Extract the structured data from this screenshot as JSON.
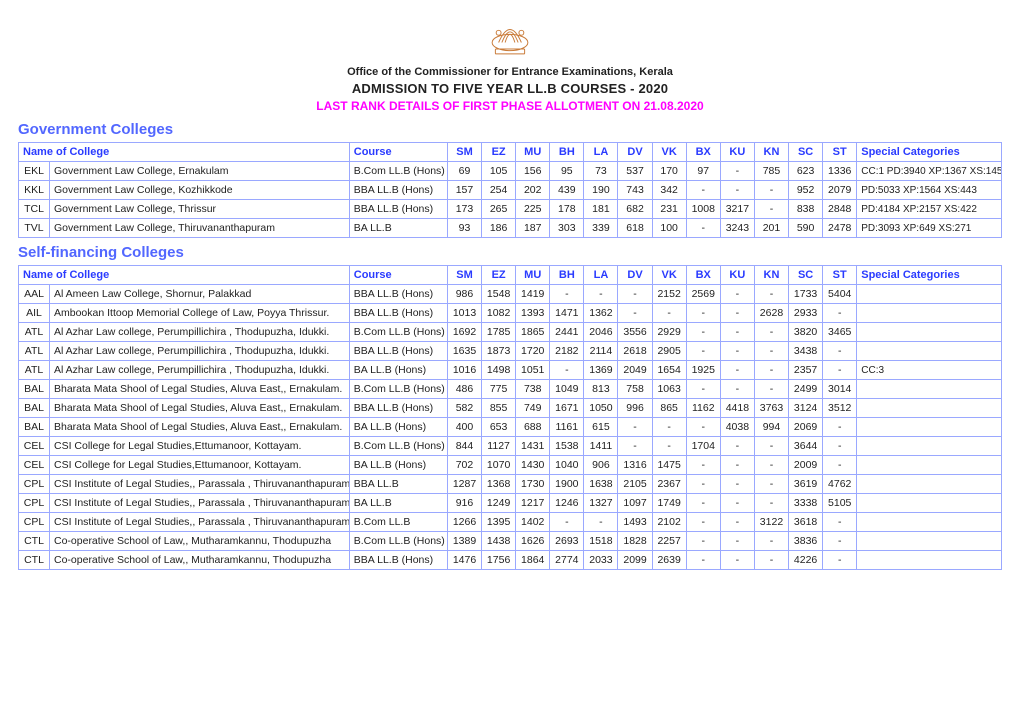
{
  "header": {
    "office": "Office of the Commissioner for Entrance Examinations, Kerala",
    "title": "ADMISSION TO FIVE YEAR LL.B COURSES - 2020",
    "subtitle": "LAST RANK DETAILS  OF FIRST PHASE ALLOTMENT ON 21.08.2020",
    "emblem_stroke": "#c97b39"
  },
  "columns": {
    "name": "Name of College",
    "course": "Course",
    "ranks": [
      "SM",
      "EZ",
      "MU",
      "BH",
      "LA",
      "DV",
      "VK",
      "BX",
      "KU",
      "KN",
      "SC",
      "ST"
    ],
    "special": "Special Categories"
  },
  "sections": [
    {
      "heading": "Government Colleges",
      "rows": [
        {
          "code": "EKL",
          "name": "Government Law College, Ernakulam",
          "course": "B.Com LL.B (Hons)",
          "ranks": [
            "69",
            "105",
            "156",
            "95",
            "73",
            "537",
            "170",
            "97",
            "-",
            "785",
            "623",
            "1336"
          ],
          "special": "CC:1 PD:3940 XP:1367 XS:145"
        },
        {
          "code": "KKL",
          "name": "Government Law College, Kozhikkode",
          "course": "BBA LL.B (Hons)",
          "ranks": [
            "157",
            "254",
            "202",
            "439",
            "190",
            "743",
            "342",
            "-",
            "-",
            "-",
            "952",
            "2079"
          ],
          "special": "PD:5033 XP:1564 XS:443"
        },
        {
          "code": "TCL",
          "name": "Government Law College, Thrissur",
          "course": "BBA LL.B (Hons)",
          "ranks": [
            "173",
            "265",
            "225",
            "178",
            "181",
            "682",
            "231",
            "1008",
            "3217",
            "-",
            "838",
            "2848"
          ],
          "special": "PD:4184 XP:2157 XS:422"
        },
        {
          "code": "TVL",
          "name": "Government Law College, Thiruvananthapuram",
          "course": "BA LL.B",
          "ranks": [
            "93",
            "186",
            "187",
            "303",
            "339",
            "618",
            "100",
            "-",
            "3243",
            "201",
            "590",
            "2478"
          ],
          "special": "PD:3093 XP:649 XS:271"
        }
      ]
    },
    {
      "heading": "Self-financing Colleges",
      "rows": [
        {
          "code": "AAL",
          "name": "Al Ameen Law College, Shornur, Palakkad",
          "course": "BBA LL.B (Hons)",
          "ranks": [
            "986",
            "1548",
            "1419",
            "-",
            "-",
            "-",
            "2152",
            "2569",
            "-",
            "-",
            "1733",
            "5404"
          ],
          "special": ""
        },
        {
          "code": "AIL",
          "name": "Ambookan Ittoop Memorial College of Law, Poyya Thrissur.",
          "course": "BBA LL.B (Hons)",
          "ranks": [
            "1013",
            "1082",
            "1393",
            "1471",
            "1362",
            "-",
            "-",
            "-",
            "-",
            "2628",
            "2933",
            "-"
          ],
          "special": ""
        },
        {
          "code": "ATL",
          "name": "Al Azhar Law college, Perumpillichira , Thodupuzha, Idukki.",
          "course": "B.Com LL.B (Hons)",
          "ranks": [
            "1692",
            "1785",
            "1865",
            "2441",
            "2046",
            "3556",
            "2929",
            "-",
            "-",
            "-",
            "3820",
            "3465"
          ],
          "special": ""
        },
        {
          "code": "ATL",
          "name": "Al Azhar Law college, Perumpillichira , Thodupuzha, Idukki.",
          "course": "BBA LL.B (Hons)",
          "ranks": [
            "1635",
            "1873",
            "1720",
            "2182",
            "2114",
            "2618",
            "2905",
            "-",
            "-",
            "-",
            "3438",
            "-"
          ],
          "special": ""
        },
        {
          "code": "ATL",
          "name": "Al Azhar Law college, Perumpillichira , Thodupuzha, Idukki.",
          "course": "BA LL.B (Hons)",
          "ranks": [
            "1016",
            "1498",
            "1051",
            "-",
            "1369",
            "2049",
            "1654",
            "1925",
            "-",
            "-",
            "2357",
            "-"
          ],
          "special": "CC:3"
        },
        {
          "code": "BAL",
          "name": "Bharata Mata Shool of Legal Studies, Aluva East,, Ernakulam.",
          "course": "B.Com LL.B (Hons)",
          "ranks": [
            "486",
            "775",
            "738",
            "1049",
            "813",
            "758",
            "1063",
            "-",
            "-",
            "-",
            "2499",
            "3014"
          ],
          "special": ""
        },
        {
          "code": "BAL",
          "name": "Bharata Mata Shool of Legal Studies, Aluva East,, Ernakulam.",
          "course": "BBA LL.B (Hons)",
          "ranks": [
            "582",
            "855",
            "749",
            "1671",
            "1050",
            "996",
            "865",
            "1162",
            "4418",
            "3763",
            "3124",
            "3512"
          ],
          "special": ""
        },
        {
          "code": "BAL",
          "name": "Bharata Mata Shool of Legal Studies, Aluva East,, Ernakulam.",
          "course": "BA LL.B (Hons)",
          "ranks": [
            "400",
            "653",
            "688",
            "1161",
            "615",
            "-",
            "-",
            "-",
            "4038",
            "994",
            "2069",
            "-"
          ],
          "special": ""
        },
        {
          "code": "CEL",
          "name": "CSI College for Legal Studies,Ettumanoor, Kottayam.",
          "course": "B.Com LL.B (Hons)",
          "ranks": [
            "844",
            "1127",
            "1431",
            "1538",
            "1411",
            "-",
            "-",
            "1704",
            "-",
            "-",
            "3644",
            "-"
          ],
          "special": ""
        },
        {
          "code": "CEL",
          "name": "CSI College for Legal Studies,Ettumanoor, Kottayam.",
          "course": "BA LL.B (Hons)",
          "ranks": [
            "702",
            "1070",
            "1430",
            "1040",
            "906",
            "1316",
            "1475",
            "-",
            "-",
            "-",
            "2009",
            "-"
          ],
          "special": ""
        },
        {
          "code": "CPL",
          "name": "CSI Institute of Legal Studies,, Parassala , Thiruvananthapuram.",
          "course": "BBA LL.B",
          "ranks": [
            "1287",
            "1368",
            "1730",
            "1900",
            "1638",
            "2105",
            "2367",
            "-",
            "-",
            "-",
            "3619",
            "4762"
          ],
          "special": ""
        },
        {
          "code": "CPL",
          "name": "CSI Institute of Legal Studies,, Parassala , Thiruvananthapuram.",
          "course": "BA LL.B",
          "ranks": [
            "916",
            "1249",
            "1217",
            "1246",
            "1327",
            "1097",
            "1749",
            "-",
            "-",
            "-",
            "3338",
            "5105"
          ],
          "special": ""
        },
        {
          "code": "CPL",
          "name": "CSI Institute of Legal Studies,, Parassala , Thiruvananthapuram.",
          "course": "B.Com LL.B",
          "ranks": [
            "1266",
            "1395",
            "1402",
            "-",
            "-",
            "1493",
            "2102",
            "-",
            "-",
            "3122",
            "3618",
            "-"
          ],
          "special": ""
        },
        {
          "code": "CTL",
          "name": "Co-operative School of Law,, Mutharamkannu, Thodupuzha",
          "course": "B.Com LL.B (Hons)",
          "ranks": [
            "1389",
            "1438",
            "1626",
            "2693",
            "1518",
            "1828",
            "2257",
            "-",
            "-",
            "-",
            "3836",
            "-"
          ],
          "special": ""
        },
        {
          "code": "CTL",
          "name": "Co-operative School of Law,, Mutharamkannu, Thodupuzha",
          "course": "BBA LL.B (Hons)",
          "ranks": [
            "1476",
            "1756",
            "1864",
            "2774",
            "2033",
            "2099",
            "2639",
            "-",
            "-",
            "-",
            "4226",
            "-"
          ],
          "special": ""
        }
      ]
    }
  ],
  "style": {
    "border_color": "#9aa8ff",
    "header_text_color": "#2a3bff",
    "section_color": "#5267ff",
    "subtitle_color": "#ff00ff"
  }
}
